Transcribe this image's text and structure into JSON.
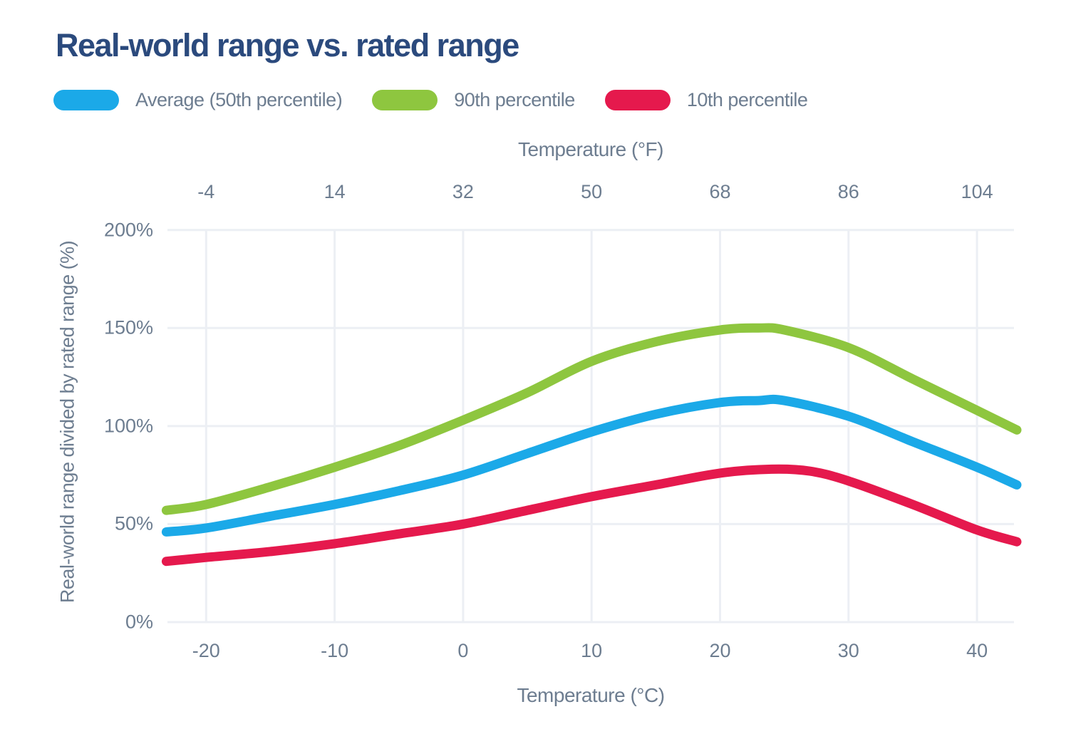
{
  "title": "Real-world range vs. rated range",
  "legend": {
    "items": [
      {
        "label": "Average (50th percentile)",
        "color": "#1BA9E8"
      },
      {
        "label": "90th percentile",
        "color": "#8EC63F"
      },
      {
        "label": "10th percentile",
        "color": "#E5194D"
      }
    ]
  },
  "colors": {
    "title_text": "#2B4A7D",
    "axis_text": "#6D7D90",
    "gridline": "#ECEFF4",
    "background": "#FFFFFF"
  },
  "chart_data": {
    "type": "line",
    "title": "Real-world range vs. rated range",
    "grid": true,
    "legend_position": "top",
    "x_axis_top": {
      "label": "Temperature (°F)",
      "ticks": [
        "-4",
        "14",
        "32",
        "50",
        "68",
        "86",
        "104"
      ]
    },
    "x_axis_bottom": {
      "label": "Temperature (°C)",
      "ticks": [
        "-20",
        "-10",
        "0",
        "10",
        "20",
        "30",
        "40"
      ],
      "tick_values": [
        -20,
        -10,
        0,
        10,
        20,
        30,
        40
      ]
    },
    "y_axis": {
      "label": "Real-world range divided by rated range (%)",
      "ticks": [
        "0%",
        "50%",
        "100%",
        "150%",
        "200%"
      ],
      "tick_values": [
        0,
        50,
        100,
        150,
        200
      ]
    },
    "xlim": [
      -23.1,
      43.2
    ],
    "ylim": [
      0,
      200
    ],
    "series": [
      {
        "name": "90th percentile",
        "color": "#8EC63F",
        "x": [
          -23.1,
          -20,
          -15,
          -10,
          -5,
          0,
          5,
          10,
          15,
          20,
          23,
          25,
          30,
          35,
          40,
          43.1
        ],
        "y": [
          57,
          60,
          69,
          79,
          90,
          103,
          117,
          133,
          143,
          149,
          150,
          149,
          140,
          124,
          108,
          98
        ]
      },
      {
        "name": "Average (50th percentile)",
        "color": "#1BA9E8",
        "x": [
          -23.1,
          -20,
          -15,
          -10,
          -5,
          0,
          5,
          10,
          15,
          20,
          23,
          25,
          30,
          35,
          40,
          43.1
        ],
        "y": [
          46,
          48,
          54,
          60,
          67,
          75,
          86,
          97,
          106,
          112,
          113,
          113,
          105,
          92,
          79,
          70
        ]
      },
      {
        "name": "10th percentile",
        "color": "#E5194D",
        "x": [
          -23.1,
          -20,
          -15,
          -10,
          -5,
          0,
          5,
          10,
          15,
          20,
          24,
          27,
          30,
          35,
          40,
          43.1
        ],
        "y": [
          31,
          33,
          36,
          40,
          45,
          50,
          57,
          64,
          70,
          76,
          78,
          77,
          72,
          60,
          47,
          41
        ]
      }
    ]
  }
}
